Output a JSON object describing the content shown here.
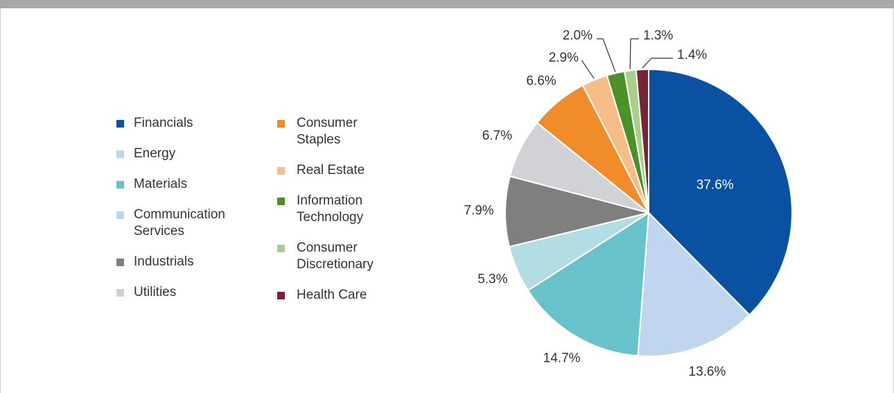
{
  "chart_data": {
    "type": "pie",
    "categories": [
      "Financials",
      "Energy",
      "Materials",
      "Communication Services",
      "Industrials",
      "Utilities",
      "Consumer Staples",
      "Real Estate",
      "Information Technology",
      "Consumer Discretionary",
      "Health Care"
    ],
    "values": [
      37.6,
      13.6,
      14.7,
      5.3,
      7.9,
      6.7,
      6.6,
      2.9,
      2.0,
      1.3,
      1.4
    ],
    "value_labels": [
      "37.6%",
      "13.6%",
      "14.7%",
      "5.3%",
      "7.9%",
      "6.7%",
      "6.6%",
      "2.9%",
      "2.0%",
      "1.3%",
      "1.4%"
    ],
    "colors": [
      "#0a52a1",
      "#c0d5ee",
      "#68c2cb",
      "#b2dde3",
      "#7f7f7f",
      "#d0d2d6",
      "#f08c2a",
      "#f7bd86",
      "#4a9127",
      "#a9cf8f",
      "#7a2238"
    ]
  }
}
